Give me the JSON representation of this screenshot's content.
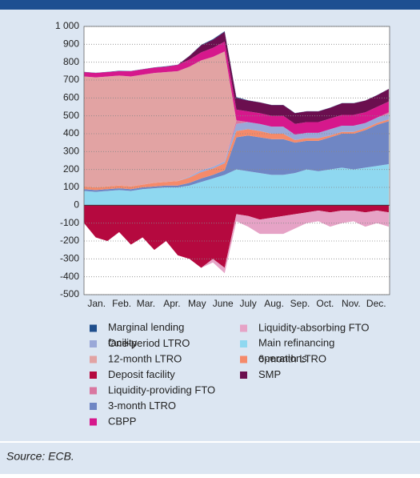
{
  "chart_data": {
    "type": "stacked_area",
    "x": [
      0,
      14,
      28,
      42,
      56,
      70,
      84,
      98,
      112,
      126,
      140,
      154,
      168,
      182,
      196,
      210,
      224,
      238,
      252,
      266,
      280,
      294,
      308,
      322,
      336,
      350,
      364
    ],
    "xlim": [
      0,
      365
    ],
    "xticks": [
      {
        "value": 15,
        "label": "Jan."
      },
      {
        "value": 45,
        "label": "Feb."
      },
      {
        "value": 74,
        "label": "Mar."
      },
      {
        "value": 105,
        "label": "Apr."
      },
      {
        "value": 135,
        "label": "May"
      },
      {
        "value": 166,
        "label": "June"
      },
      {
        "value": 196,
        "label": "July"
      },
      {
        "value": 227,
        "label": "Aug."
      },
      {
        "value": 258,
        "label": "Sep."
      },
      {
        "value": 288,
        "label": "Oct."
      },
      {
        "value": 319,
        "label": "Nov."
      },
      {
        "value": 349,
        "label": "Dec."
      }
    ],
    "ylim": [
      -500,
      1000
    ],
    "yticks": [
      -500,
      -400,
      -300,
      -200,
      -100,
      0,
      100,
      200,
      300,
      400,
      500,
      600,
      700,
      800,
      900,
      {
        "value": 1000,
        "label": "1 000"
      }
    ],
    "grid": true,
    "series": [
      {
        "name": "Marginal lending facility",
        "color": "#1f4e8c",
        "values": [
          1,
          1,
          1,
          2,
          1,
          1,
          1,
          2,
          1,
          1,
          2,
          4,
          3,
          5,
          2,
          1,
          1,
          1,
          1,
          1,
          1,
          1,
          1,
          1,
          1,
          1,
          1
        ]
      },
      {
        "name": "One-period LTRO",
        "color": "#9aa8d8",
        "values": [
          0,
          0,
          0,
          0,
          0,
          0,
          0,
          0,
          0,
          5,
          10,
          10,
          10,
          40,
          40,
          40,
          40,
          40,
          30,
          30,
          30,
          35,
          35,
          35,
          30,
          30,
          30
        ]
      },
      {
        "name": "12-month LTRO",
        "color": "#e2a3a3",
        "values": [
          615,
          615,
          615,
          615,
          615,
          615,
          615,
          615,
          615,
          615,
          615,
          615,
          615,
          0,
          0,
          0,
          0,
          0,
          0,
          0,
          0,
          0,
          0,
          0,
          0,
          0,
          0
        ]
      },
      {
        "name": "Deposit facility",
        "color": "#b5093f",
        "values": [
          -100,
          -180,
          -200,
          -150,
          -220,
          -180,
          -250,
          -200,
          -280,
          -300,
          -350,
          -300,
          -350,
          -50,
          -60,
          -80,
          -70,
          -60,
          -50,
          -40,
          -30,
          -40,
          -30,
          -30,
          -40,
          -30,
          -40
        ]
      },
      {
        "name": "Liquidity-providing FTO",
        "color": "#d977a0",
        "values": [
          0,
          0,
          0,
          0,
          0,
          0,
          0,
          0,
          0,
          0,
          0,
          0,
          0,
          20,
          0,
          0,
          0,
          0,
          0,
          0,
          0,
          0,
          0,
          0,
          0,
          0,
          10
        ]
      },
      {
        "name": "3-month LTRO",
        "color": "#6f86c4",
        "values": [
          10,
          10,
          10,
          10,
          10,
          10,
          10,
          10,
          10,
          15,
          20,
          20,
          25,
          180,
          200,
          200,
          200,
          200,
          170,
          160,
          170,
          180,
          190,
          200,
          210,
          230,
          240
        ]
      },
      {
        "name": "CBPP",
        "color": "#d6188c",
        "values": [
          25,
          25,
          25,
          25,
          30,
          30,
          30,
          30,
          35,
          40,
          45,
          50,
          55,
          60,
          60,
          60,
          60,
          60,
          60,
          60,
          60,
          60,
          60,
          60,
          60,
          60,
          60
        ]
      },
      {
        "name": "Liquidity-absorbing FTO",
        "color": "#e6a3c6",
        "values": [
          0,
          0,
          0,
          0,
          0,
          0,
          0,
          0,
          0,
          0,
          0,
          -20,
          -30,
          -40,
          -60,
          -80,
          -90,
          -100,
          -80,
          -60,
          -60,
          -80,
          -70,
          -60,
          -80,
          -70,
          -80
        ]
      },
      {
        "name": "Main refinancing operations",
        "color": "#8fd8f0",
        "values": [
          80,
          75,
          80,
          85,
          80,
          90,
          95,
          100,
          100,
          110,
          130,
          150,
          170,
          200,
          190,
          180,
          170,
          170,
          180,
          200,
          190,
          200,
          210,
          200,
          210,
          220,
          230
        ]
      },
      {
        "name": "6-month LTRO",
        "color": "#f58a6a",
        "values": [
          15,
          15,
          15,
          15,
          15,
          15,
          20,
          20,
          25,
          30,
          35,
          35,
          40,
          35,
          35,
          35,
          30,
          30,
          15,
          15,
          15,
          10,
          10,
          10,
          10,
          10,
          10
        ]
      },
      {
        "name": "SMP",
        "color": "#6b0f4f",
        "values": [
          0,
          0,
          0,
          0,
          0,
          0,
          0,
          0,
          0,
          20,
          40,
          45,
          55,
          65,
          60,
          60,
          60,
          60,
          60,
          60,
          60,
          60,
          65,
          65,
          65,
          65,
          70
        ]
      }
    ],
    "source": "Source: ECB."
  }
}
